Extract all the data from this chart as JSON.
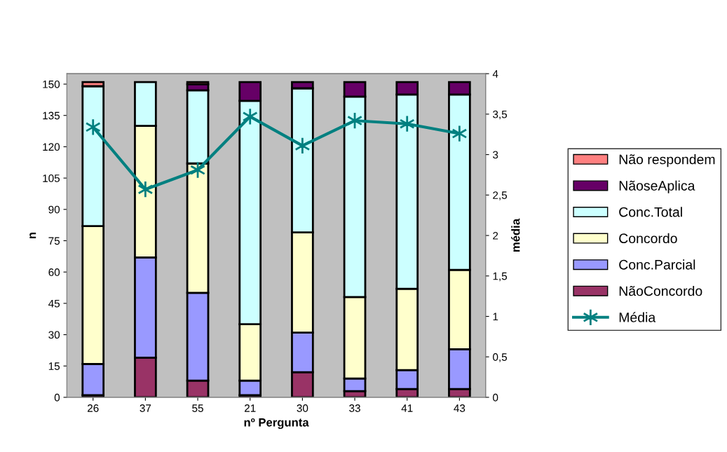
{
  "chart_data": {
    "type": "bar",
    "stacked": true,
    "xlabel": "nº Pergunta",
    "ylabel": "n",
    "y2label": "média",
    "categories": [
      "26",
      "37",
      "55",
      "21",
      "30",
      "33",
      "41",
      "43"
    ],
    "series": [
      {
        "name": "NãoConcordo",
        "color": "#993366",
        "values": [
          1,
          19,
          8,
          1,
          12,
          3,
          4,
          4
        ]
      },
      {
        "name": "Conc.Parcial",
        "color": "#9999ff",
        "values": [
          15,
          48,
          42,
          7,
          19,
          6,
          9,
          19
        ]
      },
      {
        "name": "Concordo",
        "color": "#ffffcc",
        "values": [
          66,
          63,
          62,
          27,
          48,
          39,
          39,
          38
        ]
      },
      {
        "name": "Conc.Total",
        "color": "#ccffff",
        "values": [
          67,
          21,
          35,
          107,
          69,
          96,
          93,
          84
        ]
      },
      {
        "name": "NãoseAplica",
        "color": "#660066",
        "values": [
          0,
          0,
          3,
          9,
          3,
          7,
          6,
          6
        ]
      },
      {
        "name": "Não respondem",
        "color": "#ff8080",
        "values": [
          2,
          0,
          1,
          0,
          0,
          0,
          0,
          0
        ]
      },
      {
        "name": "Média",
        "type": "line",
        "axis": "y2",
        "color": "#008080",
        "marker": "cross",
        "values": [
          3.34,
          2.57,
          2.81,
          3.47,
          3.11,
          3.42,
          3.38,
          3.26
        ]
      }
    ],
    "ylim": [
      0,
      155
    ],
    "yticks": [
      0,
      15,
      30,
      45,
      60,
      75,
      90,
      105,
      120,
      135,
      150
    ],
    "y2lim": [
      0,
      4
    ],
    "y2ticks": [
      0,
      {
        "value": 0.5,
        "label": "0,5"
      },
      1,
      {
        "value": 1.5,
        "label": "1,5"
      },
      2,
      {
        "value": 2.5,
        "label": "2,5"
      },
      3,
      {
        "value": 3.5,
        "label": "3,5"
      },
      4
    ],
    "grid": false,
    "legend": "right"
  }
}
